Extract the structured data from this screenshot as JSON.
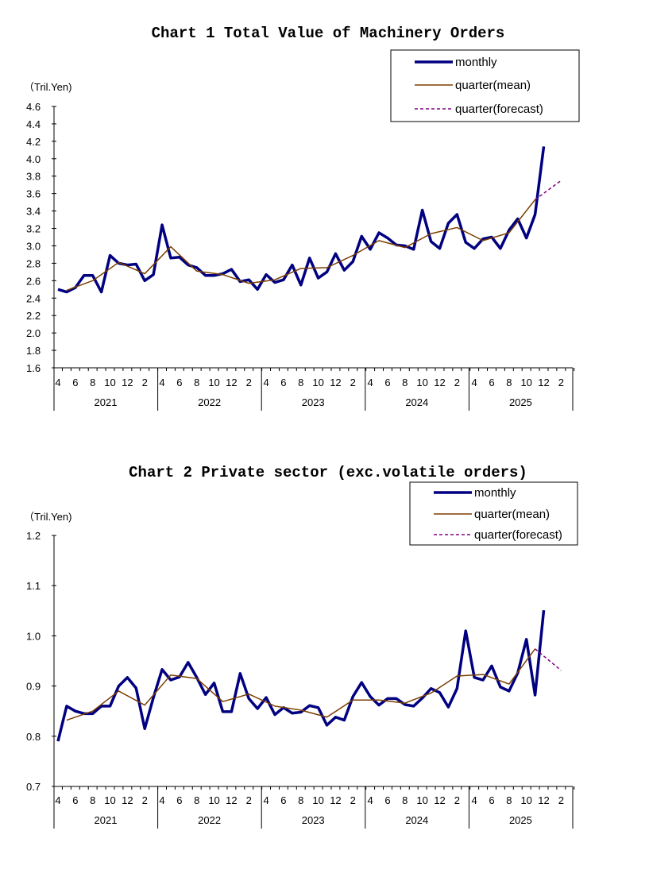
{
  "chart_data": [
    {
      "type": "line",
      "title": "Chart 1 Total Value of Machinery Orders",
      "ylabel": "（Tril.Yen)",
      "ylim": [
        1.6,
        4.6
      ],
      "ytick_step": 0.2,
      "ytick_decimals": 1,
      "x_range": [
        "2021-04",
        "2026-03"
      ],
      "month_tick_labels": [
        "4",
        "6",
        "8",
        "10",
        "12",
        "2"
      ],
      "year_labels": [
        "2021",
        "2022",
        "2023",
        "2024",
        "2025"
      ],
      "grid": false,
      "legend": "top-right",
      "series": [
        {
          "name": "monthly",
          "color": "#000080",
          "style": "solid-thick",
          "x_start": "2021-04",
          "values": [
            2.5,
            2.47,
            2.52,
            2.66,
            2.66,
            2.47,
            2.89,
            2.8,
            2.78,
            2.79,
            2.6,
            2.67,
            3.24,
            2.86,
            2.87,
            2.78,
            2.75,
            2.66,
            2.66,
            2.68,
            2.73,
            2.59,
            2.61,
            2.5,
            2.67,
            2.58,
            2.61,
            2.78,
            2.55,
            2.86,
            2.63,
            2.7,
            2.91,
            2.72,
            2.82,
            3.11,
            2.96,
            3.15,
            3.09,
            3.01,
            3.0,
            2.96,
            3.41,
            3.05,
            2.97,
            3.26,
            3.36,
            3.04,
            2.97,
            3.08,
            3.1,
            2.97,
            3.18,
            3.31,
            3.09,
            3.36,
            4.14
          ]
        },
        {
          "name": "quarter(mean)",
          "color": "#7B3F00",
          "style": "solid",
          "x": [
            "2021-05",
            "2021-08",
            "2021-11",
            "2022-02",
            "2022-05",
            "2022-08",
            "2022-11",
            "2023-02",
            "2023-05",
            "2023-08",
            "2023-11",
            "2024-02",
            "2024-05",
            "2024-08",
            "2024-11",
            "2025-02",
            "2025-05",
            "2025-08",
            "2025-11"
          ],
          "values": [
            2.49,
            2.6,
            2.81,
            2.68,
            2.99,
            2.71,
            2.67,
            2.57,
            2.61,
            2.74,
            2.75,
            2.89,
            3.06,
            2.98,
            3.14,
            3.21,
            3.06,
            3.15,
            3.53
          ]
        },
        {
          "name": "quarter(forecast)",
          "color": "#800080",
          "style": "dashed",
          "x": [
            "2025-11",
            "2026-02"
          ],
          "values": [
            3.53,
            3.75
          ]
        }
      ]
    },
    {
      "type": "line",
      "title": "Chart 2 Private sector (exc.volatile orders)",
      "ylabel": "（Tril.Yen)",
      "ylim": [
        0.7,
        1.2
      ],
      "ytick_step": 0.1,
      "ytick_decimals": 1,
      "x_range": [
        "2021-04",
        "2026-03"
      ],
      "month_tick_labels": [
        "4",
        "6",
        "8",
        "10",
        "12",
        "2"
      ],
      "year_labels": [
        "2021",
        "2022",
        "2023",
        "2024",
        "2025"
      ],
      "grid": false,
      "legend": "top-right",
      "series": [
        {
          "name": "monthly",
          "color": "#000080",
          "style": "solid-thick",
          "x_start": "2021-04",
          "values": [
            0.79,
            0.86,
            0.85,
            0.845,
            0.845,
            0.86,
            0.86,
            0.9,
            0.917,
            0.896,
            0.815,
            0.877,
            0.933,
            0.912,
            0.918,
            0.947,
            0.917,
            0.883,
            0.906,
            0.849,
            0.849,
            0.925,
            0.875,
            0.855,
            0.877,
            0.843,
            0.857,
            0.846,
            0.848,
            0.861,
            0.857,
            0.822,
            0.838,
            0.832,
            0.879,
            0.907,
            0.879,
            0.862,
            0.875,
            0.875,
            0.863,
            0.86,
            0.876,
            0.895,
            0.887,
            0.858,
            0.895,
            1.01,
            0.917,
            0.912,
            0.94,
            0.898,
            0.89,
            0.926,
            0.993,
            0.882,
            1.051
          ]
        },
        {
          "name": "quarter(mean)",
          "color": "#7B3F00",
          "style": "solid",
          "x": [
            "2021-05",
            "2021-08",
            "2021-11",
            "2022-02",
            "2022-05",
            "2022-08",
            "2022-11",
            "2023-02",
            "2023-05",
            "2023-08",
            "2023-11",
            "2024-02",
            "2024-05",
            "2024-08",
            "2024-11",
            "2025-02",
            "2025-05",
            "2025-08",
            "2025-11"
          ],
          "values": [
            0.832,
            0.85,
            0.89,
            0.862,
            0.922,
            0.915,
            0.869,
            0.884,
            0.86,
            0.852,
            0.838,
            0.872,
            0.872,
            0.866,
            0.886,
            0.92,
            0.923,
            0.904,
            0.974
          ]
        },
        {
          "name": "quarter(forecast)",
          "color": "#800080",
          "style": "dashed",
          "x": [
            "2025-11",
            "2026-02"
          ],
          "values": [
            0.974,
            0.931
          ]
        }
      ]
    }
  ]
}
